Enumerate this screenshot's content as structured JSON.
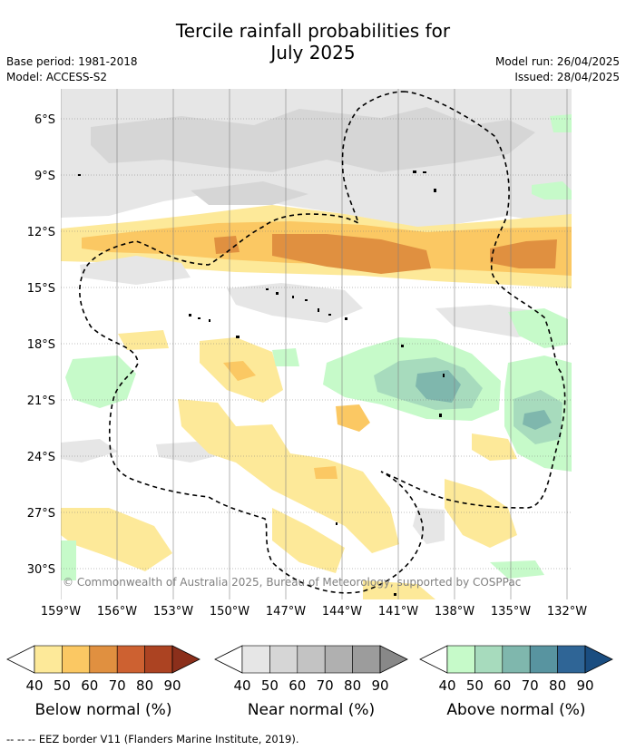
{
  "header": {
    "title_line1": "Tercile rainfall probabilities for",
    "title_line2": "July 2025",
    "base_period": "Base period: 1981-2018",
    "model": "Model: ACCESS-S2",
    "model_run": "Model run: 26/04/2025",
    "issued": "Issued: 28/04/2025"
  },
  "map": {
    "lat_labels": [
      "6°S",
      "9°S",
      "12°S",
      "15°S",
      "18°S",
      "21°S",
      "24°S",
      "27°S",
      "30°S"
    ],
    "lon_labels": [
      "159°W",
      "156°W",
      "153°W",
      "150°W",
      "147°W",
      "144°W",
      "141°W",
      "138°W",
      "135°W",
      "132°W"
    ],
    "copyright": "© Commonwealth of Australia 2025, Bureau of Meteorology, supported by COSPPac"
  },
  "legends": [
    {
      "label": "Below normal (%)",
      "ticks": [
        "40",
        "50",
        "60",
        "70",
        "80",
        "90"
      ],
      "colors": [
        "#fde999",
        "#fbc863",
        "#e09040",
        "#cd6131",
        "#ac4322",
        "#8b2f1b"
      ]
    },
    {
      "label": "Near normal (%)",
      "ticks": [
        "40",
        "50",
        "60",
        "70",
        "80",
        "90"
      ],
      "colors": [
        "#e6e6e6",
        "#d6d6d6",
        "#c3c3c3",
        "#b0b0b0",
        "#9c9c9c",
        "#888888"
      ]
    },
    {
      "label": "Above normal (%)",
      "ticks": [
        "40",
        "50",
        "60",
        "70",
        "80",
        "90"
      ],
      "colors": [
        "#c6fac9",
        "#a7dbbd",
        "#7fb7ad",
        "#5894a0",
        "#2f6596",
        "#1a4d80"
      ]
    }
  ],
  "footnote": "--  --  -- EEZ border V11 (Flanders Marine Institute, 2019)."
}
